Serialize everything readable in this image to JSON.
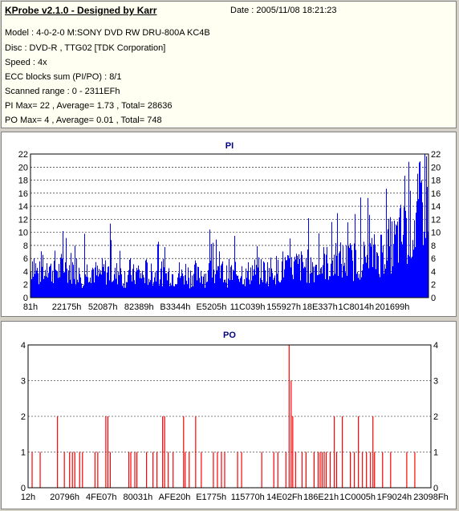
{
  "header": {
    "title": "KProbe v2.1.0 - Designed by Karr",
    "date": "Date : 2005/11/08 18:21:23",
    "lines": [
      "Model : 4-0-2-0 M:SONY    DVD RW DRU-800A  KC4B",
      "Disc : DVD-R , TTG02 [TDK Corporation]",
      "Speed : 4x",
      "ECC blocks sum (PI/PO) : 8/1",
      "Scanned range : 0 - 2311EFh",
      "PI Max= 22 , Average= 1.73 , Total= 28636",
      "PO Max= 4 , Average= 0.01 , Total= 748"
    ]
  },
  "colors": {
    "pi": "#0000ff",
    "po": "#ff0000",
    "title": "#000080",
    "grid": "#000000"
  },
  "chart_data": [
    {
      "type": "bar",
      "title": "PI",
      "ylim": [
        0,
        22
      ],
      "yticks": [
        0,
        2,
        4,
        6,
        8,
        10,
        12,
        14,
        16,
        18,
        20,
        22
      ],
      "xticklabels": [
        "81h",
        "22175h",
        "52087h",
        "82389h",
        "B3344h",
        "E5205h",
        "11C039h",
        "155927h",
        "18E337h",
        "1C8014h",
        "201699h"
      ],
      "profile": [
        [
          0,
          5
        ],
        [
          0.5,
          8
        ],
        [
          1,
          6
        ],
        [
          1.5,
          5
        ],
        [
          2,
          4
        ],
        [
          3,
          7
        ],
        [
          3.5,
          4
        ],
        [
          4,
          8
        ],
        [
          5,
          5
        ],
        [
          6,
          6
        ],
        [
          7,
          5
        ],
        [
          8,
          6
        ],
        [
          9,
          5
        ],
        [
          10,
          6
        ],
        [
          11,
          5
        ],
        [
          12,
          6
        ],
        [
          13,
          4
        ],
        [
          14,
          5
        ],
        [
          15,
          6
        ],
        [
          16,
          5
        ],
        [
          17,
          4
        ],
        [
          18,
          5
        ],
        [
          19,
          5
        ],
        [
          20,
          5
        ],
        [
          21,
          4
        ],
        [
          22,
          5
        ],
        [
          23,
          4
        ],
        [
          24,
          4
        ],
        [
          25,
          5
        ],
        [
          26,
          4
        ],
        [
          27,
          5
        ],
        [
          28,
          4
        ],
        [
          29,
          5
        ],
        [
          30,
          4
        ],
        [
          31,
          5
        ],
        [
          32,
          4
        ],
        [
          33,
          5
        ],
        [
          34,
          4
        ],
        [
          35,
          5
        ],
        [
          36,
          4
        ],
        [
          37,
          5
        ],
        [
          38,
          4
        ],
        [
          39,
          5
        ],
        [
          40,
          4
        ],
        [
          41,
          5
        ],
        [
          42,
          4
        ],
        [
          43,
          5
        ],
        [
          44,
          4
        ],
        [
          45,
          5
        ],
        [
          46,
          5
        ],
        [
          47,
          4
        ],
        [
          48,
          5
        ],
        [
          49,
          4
        ],
        [
          50,
          5
        ],
        [
          51,
          4
        ],
        [
          52,
          5
        ],
        [
          53,
          5
        ],
        [
          54,
          4
        ],
        [
          55,
          5
        ],
        [
          56,
          5
        ],
        [
          57,
          5
        ],
        [
          58,
          5
        ],
        [
          59,
          5
        ],
        [
          60,
          5
        ],
        [
          61,
          6
        ],
        [
          62,
          5
        ],
        [
          63,
          6
        ],
        [
          64,
          6
        ],
        [
          65,
          5
        ],
        [
          66,
          6
        ],
        [
          67,
          6
        ],
        [
          68,
          6
        ],
        [
          69,
          6
        ],
        [
          70,
          6
        ],
        [
          71,
          6
        ],
        [
          72,
          6
        ],
        [
          73,
          6
        ],
        [
          74,
          7
        ],
        [
          75,
          6
        ],
        [
          76,
          7
        ],
        [
          77,
          7
        ],
        [
          78,
          7
        ],
        [
          79,
          7
        ],
        [
          80,
          7
        ],
        [
          81,
          7
        ],
        [
          82,
          7
        ],
        [
          83,
          8
        ],
        [
          84,
          7
        ],
        [
          85,
          8
        ],
        [
          86,
          8
        ],
        [
          87,
          8
        ],
        [
          88,
          9
        ],
        [
          89,
          9
        ],
        [
          90,
          10
        ],
        [
          91,
          10
        ],
        [
          92,
          11
        ],
        [
          93,
          12
        ],
        [
          94,
          12
        ],
        [
          95,
          13
        ],
        [
          96,
          14
        ],
        [
          97,
          15
        ],
        [
          98,
          18
        ],
        [
          99,
          20
        ],
        [
          100,
          22
        ]
      ]
    },
    {
      "type": "bar",
      "title": "PO",
      "ylim": [
        0,
        4
      ],
      "yticks": [
        0,
        1,
        2,
        3,
        4
      ],
      "xticklabels": [
        "12h",
        "20796h",
        "4FE07h",
        "80031h",
        "AFE20h",
        "E1775h",
        "115770h",
        "14E02Fh",
        "186E21h",
        "1C0005h",
        "1F9024h",
        "23098Fh"
      ],
      "values": [
        [
          1,
          1
        ],
        [
          3,
          1
        ],
        [
          7.3,
          2
        ],
        [
          9,
          1
        ],
        [
          10.3,
          1
        ],
        [
          11,
          1
        ],
        [
          11.6,
          1
        ],
        [
          12.8,
          1
        ],
        [
          13.5,
          1
        ],
        [
          16.6,
          1
        ],
        [
          17.3,
          1
        ],
        [
          19.3,
          2
        ],
        [
          19.8,
          2
        ],
        [
          20.4,
          1
        ],
        [
          25,
          1
        ],
        [
          25.5,
          1
        ],
        [
          26.5,
          1
        ],
        [
          27,
          1
        ],
        [
          29.4,
          1
        ],
        [
          31,
          1
        ],
        [
          32,
          1
        ],
        [
          33.4,
          2
        ],
        [
          33.9,
          2
        ],
        [
          34.8,
          1
        ],
        [
          36,
          1
        ],
        [
          38.6,
          2
        ],
        [
          39,
          1
        ],
        [
          40,
          1
        ],
        [
          41.6,
          2
        ],
        [
          43,
          1
        ],
        [
          46,
          1
        ],
        [
          47,
          1
        ],
        [
          48,
          1
        ],
        [
          48.8,
          1
        ],
        [
          52,
          1
        ],
        [
          53,
          1
        ],
        [
          58,
          1
        ],
        [
          61,
          1
        ],
        [
          62,
          1
        ],
        [
          64,
          1
        ],
        [
          64.8,
          4
        ],
        [
          65.3,
          3
        ],
        [
          65.7,
          2
        ],
        [
          66.4,
          1
        ],
        [
          68,
          1
        ],
        [
          69,
          1
        ],
        [
          71,
          1
        ],
        [
          72,
          1
        ],
        [
          72.5,
          1
        ],
        [
          73,
          1
        ],
        [
          73.5,
          1
        ],
        [
          74,
          1
        ],
        [
          75,
          1
        ],
        [
          76,
          2
        ],
        [
          76.6,
          1
        ],
        [
          78,
          2
        ],
        [
          80,
          1
        ],
        [
          81,
          1
        ],
        [
          82,
          2
        ],
        [
          83,
          1
        ],
        [
          84,
          1
        ],
        [
          85,
          1
        ],
        [
          85.6,
          2
        ],
        [
          86,
          1
        ],
        [
          88,
          1
        ],
        [
          90,
          1
        ],
        [
          94,
          1
        ],
        [
          96,
          1
        ]
      ]
    }
  ]
}
